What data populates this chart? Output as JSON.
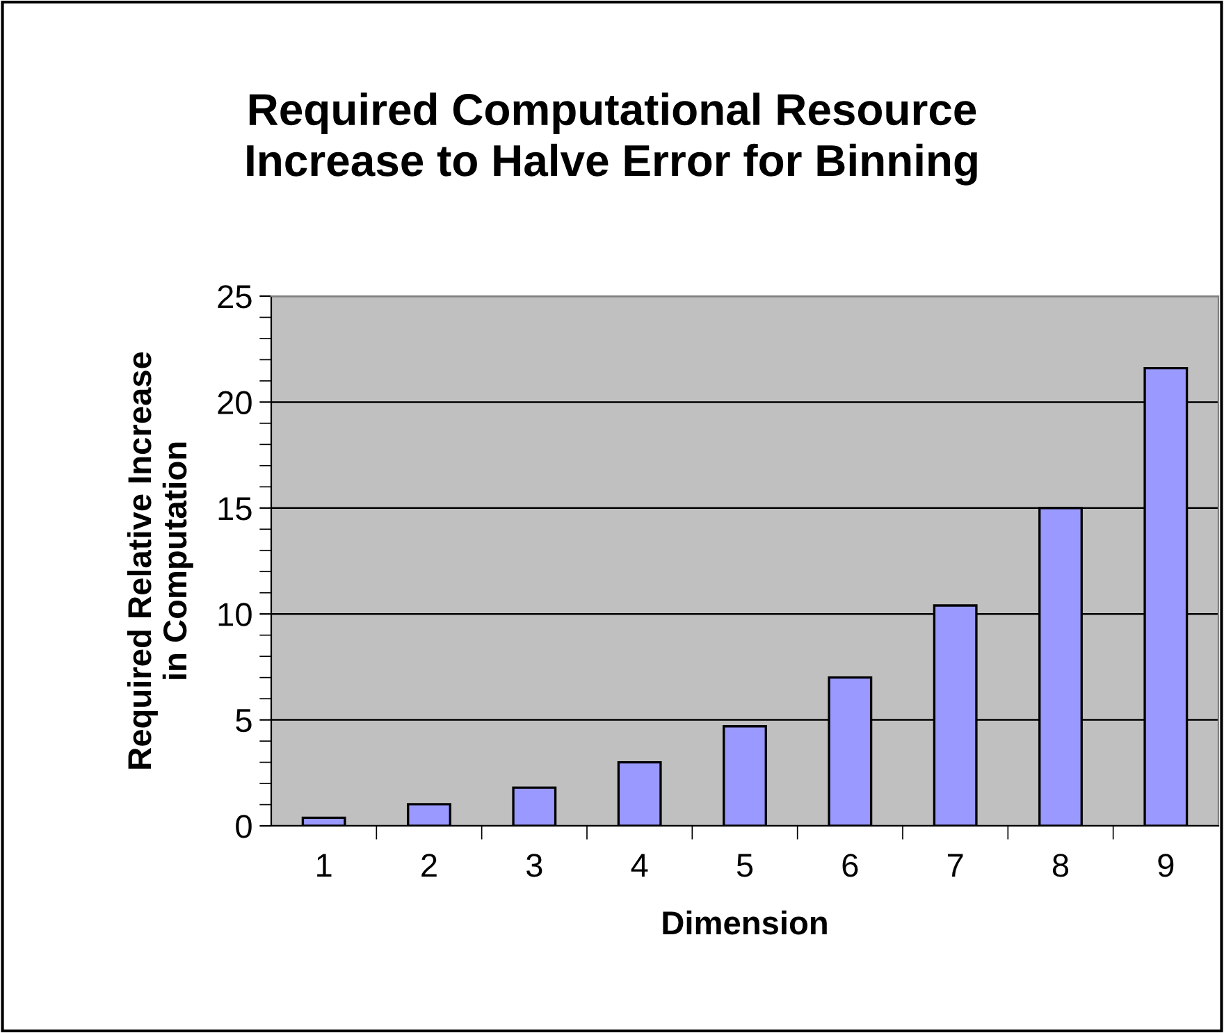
{
  "chart_data": {
    "type": "bar",
    "title": "Required Computational Resource\nIncrease to Halve Error for Binning",
    "xlabel": "Dimension",
    "ylabel": "Required Relative Increase\nin Computation",
    "categories": [
      "1",
      "2",
      "3",
      "4",
      "5",
      "6",
      "7",
      "8",
      "9"
    ],
    "values": [
      0.38,
      1.02,
      1.8,
      3.0,
      4.7,
      7.0,
      10.4,
      15.0,
      21.6
    ],
    "color": "#9999ff",
    "ylim": [
      0,
      25
    ],
    "yticks": [
      0,
      5,
      10,
      15,
      20,
      25
    ],
    "grid": "y",
    "legend": false
  }
}
